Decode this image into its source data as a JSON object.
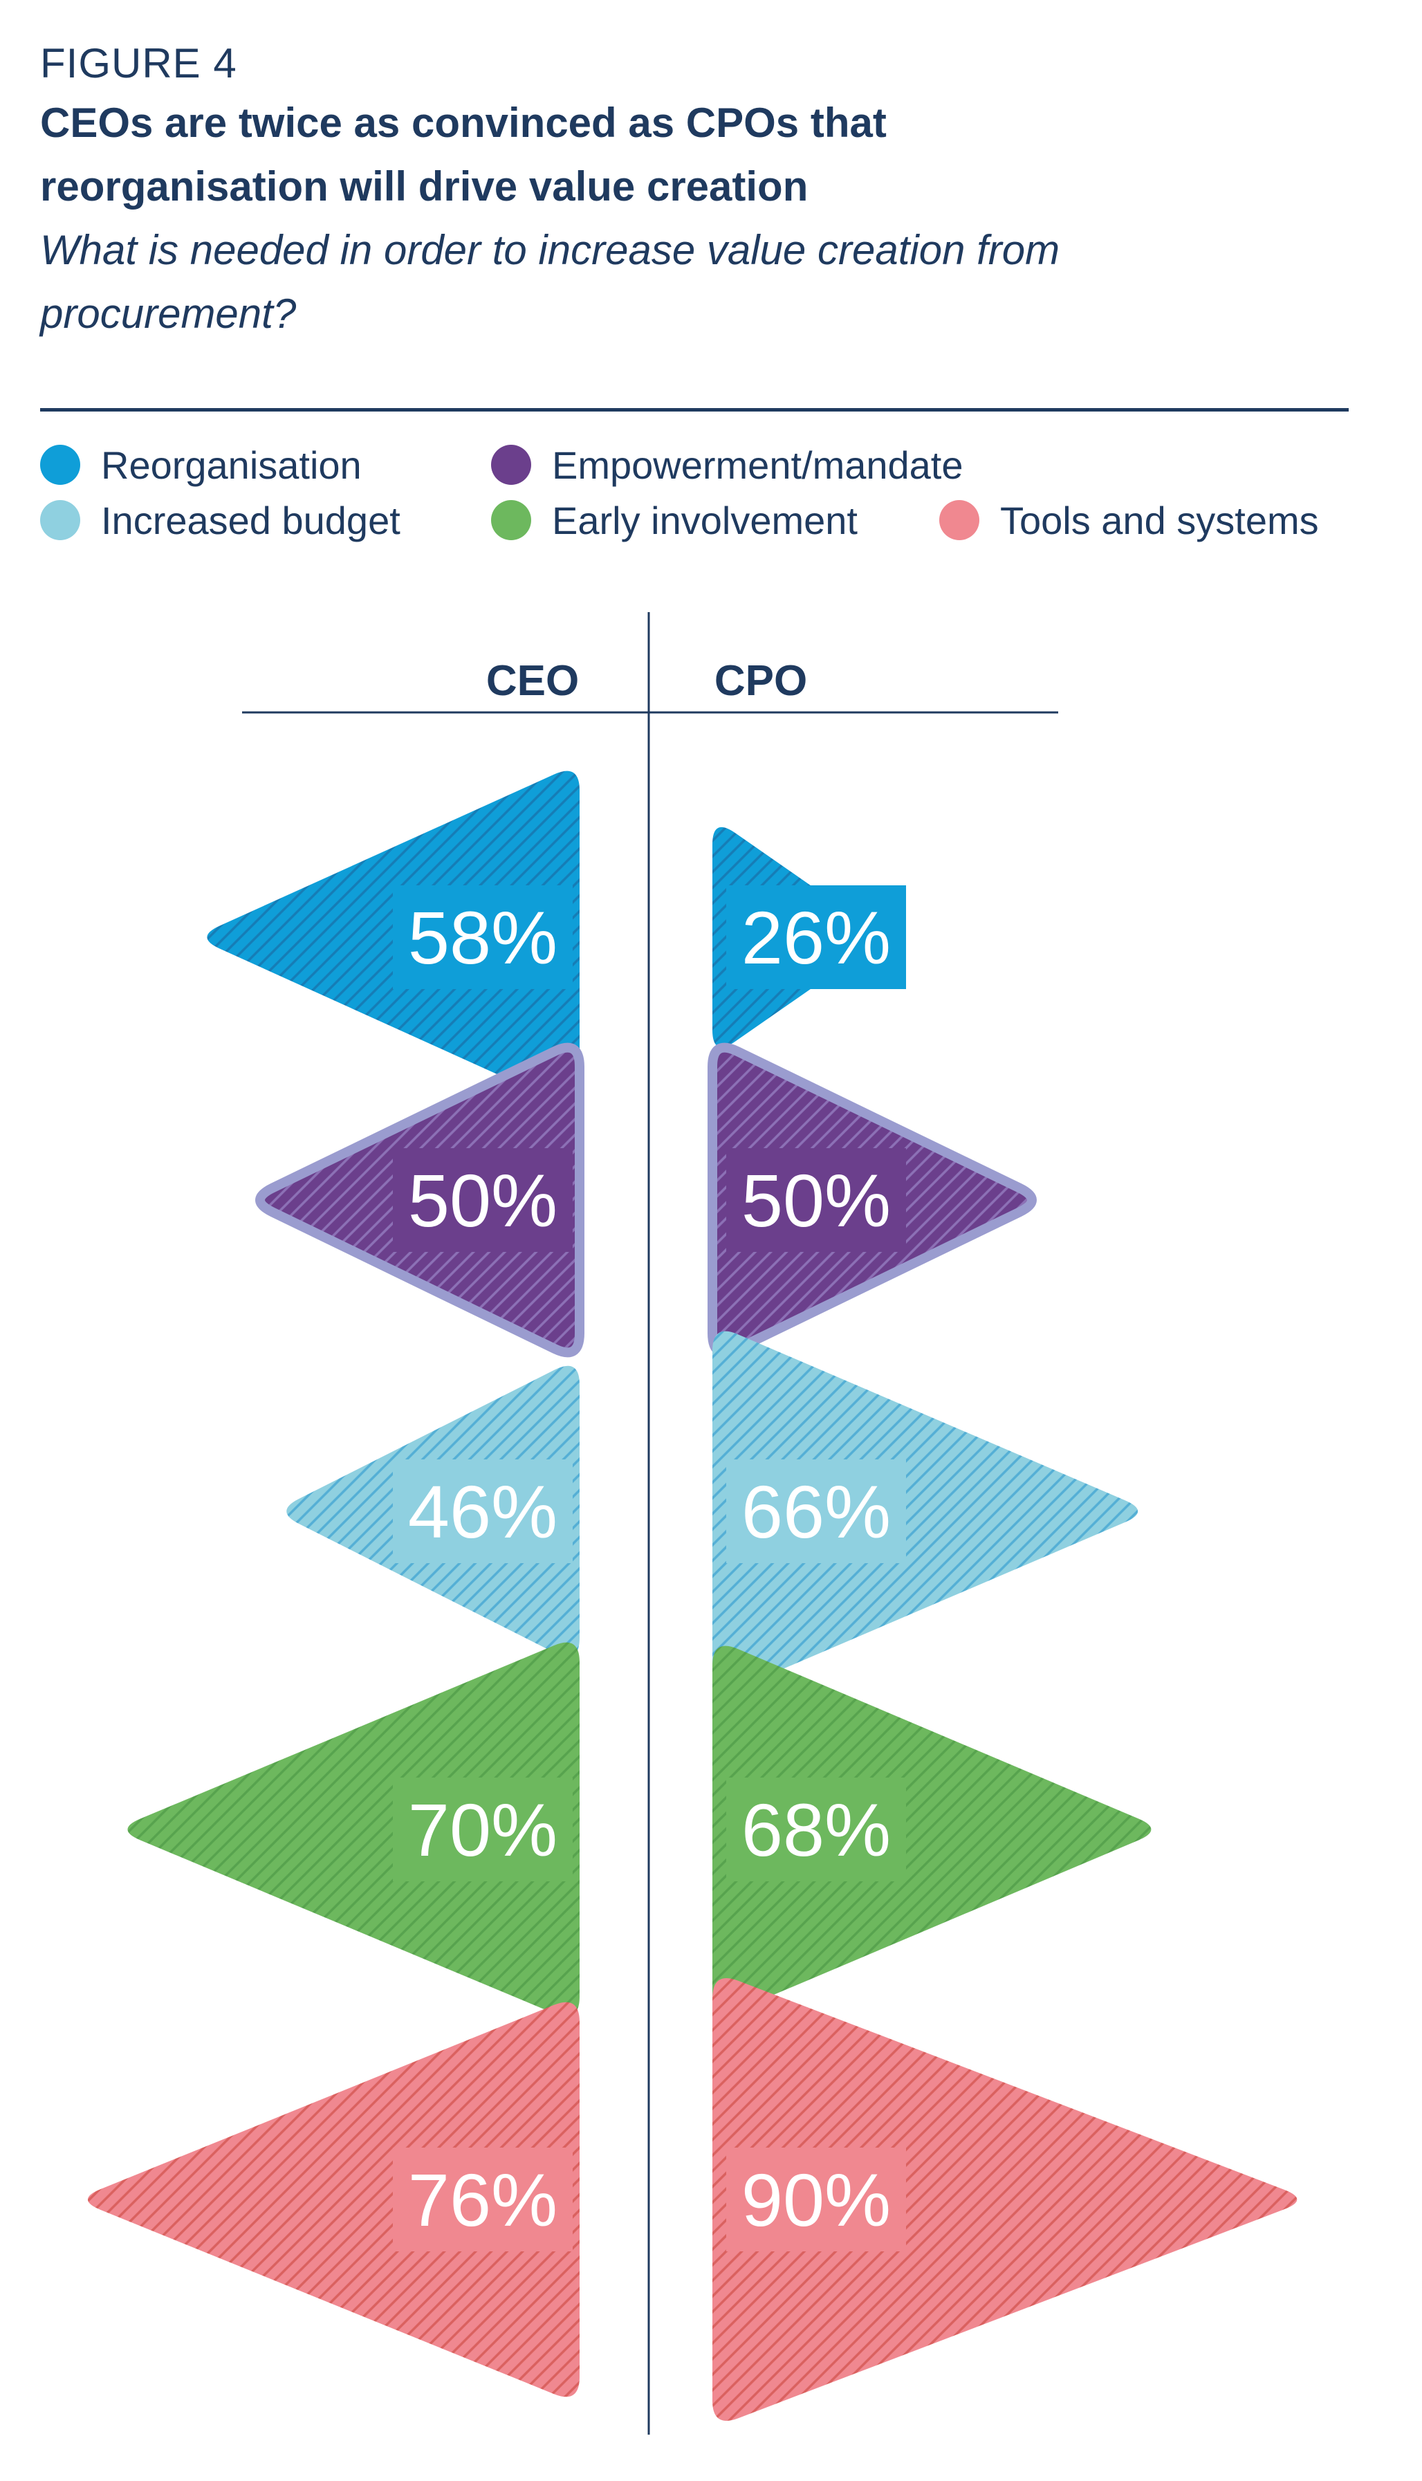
{
  "figure": {
    "label": "FIGURE 4",
    "title": "CEOs are twice as convinced as CPOs that reorganisation will drive value creation",
    "subtitle": "What is needed in order to increase value creation from procurement?"
  },
  "legend": [
    {
      "label": "Reorganisation",
      "color": "#0f9ed8"
    },
    {
      "label": "Empowerment/mandate",
      "color": "#6b3f8c"
    },
    {
      "label": "Increased budget",
      "color": "#8fd0e0"
    },
    {
      "label": "Early involvement",
      "color": "#6db85e"
    },
    {
      "label": "Tools and systems",
      "color": "#f08890"
    }
  ],
  "chart_data": {
    "type": "bar",
    "title": "CEOs are twice as convinced as CPOs that reorganisation will drive value creation",
    "xlabel": "",
    "ylabel": "",
    "columns": [
      "CEO",
      "CPO"
    ],
    "categories": [
      "Reorganisation",
      "Empowerment/mandate",
      "Increased budget",
      "Early involvement",
      "Tools and systems"
    ],
    "series": [
      {
        "name": "CEO",
        "values": [
          58,
          50,
          46,
          70,
          76
        ]
      },
      {
        "name": "CPO",
        "values": [
          26,
          50,
          66,
          68,
          90
        ]
      }
    ],
    "value_labels": {
      "CEO": [
        "58%",
        "50%",
        "46%",
        "70%",
        "76%"
      ],
      "CPO": [
        "26%",
        "50%",
        "66%",
        "68%",
        "90%"
      ]
    },
    "colors": [
      "#0f9ed8",
      "#6b3f8c",
      "#8fd0e0",
      "#6db85e",
      "#f08890"
    ],
    "stripe_colors": [
      "#1a6fa8",
      "#9a86c8",
      "#3aa2d0",
      "#4e9a48",
      "#d0504a"
    ],
    "outline_colors": [
      "",
      "#9a9ccf",
      "",
      "",
      ""
    ],
    "unit": "%",
    "ylim": [
      0,
      100
    ]
  }
}
